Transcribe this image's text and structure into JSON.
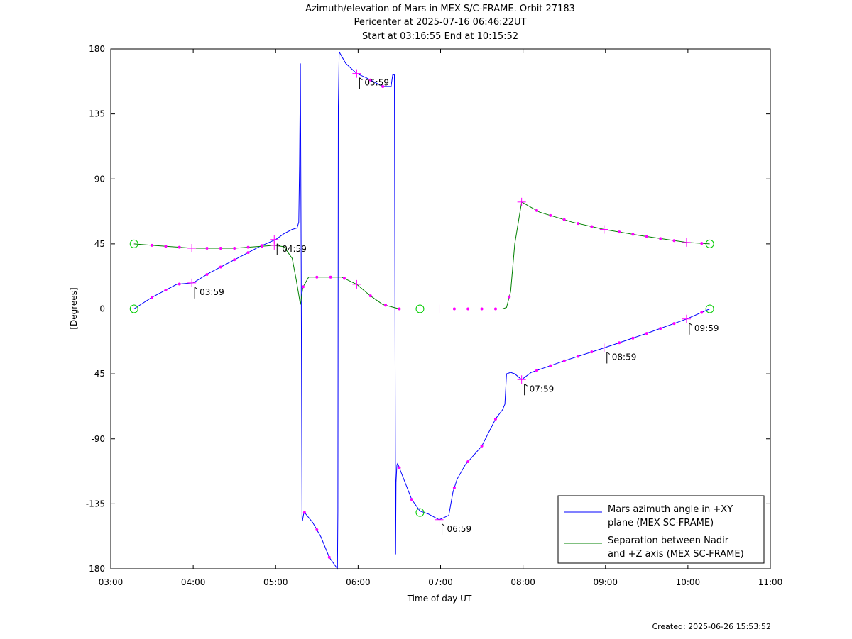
{
  "title": {
    "line1": "Azimuth/elevation of Mars in MEX S/C-FRAME.  Orbit 27183",
    "line2": "Pericenter at 2025-07-16 06:46:22UT",
    "line3": "Start at 03:16:55 End at 10:15:52"
  },
  "footer": {
    "created": "Created: 2025-06-26 15:53:52"
  },
  "chart_data": {
    "type": "line",
    "xlabel": "Time of day UT",
    "ylabel": "[Degrees]",
    "xlim": [
      3.0,
      11.0
    ],
    "ylim": [
      -180,
      180
    ],
    "xticks": [
      3,
      4,
      5,
      6,
      7,
      8,
      9,
      10,
      11
    ],
    "xtick_labels": [
      "03:00",
      "04:00",
      "05:00",
      "06:00",
      "07:00",
      "08:00",
      "09:00",
      "10:00",
      "11:00"
    ],
    "yticks": [
      180,
      135,
      90,
      45,
      0,
      -45,
      -90,
      -135,
      -180
    ],
    "ytick_labels": [
      "180",
      "135",
      "90",
      "45",
      "0",
      "-45",
      "-90",
      "-135",
      "-180"
    ],
    "grid": false,
    "legend_position": "bottom-right",
    "colors": {
      "azimuth": "#0000ff",
      "separation": "#008000",
      "markers": "#ff00ff",
      "endpoints": "#00cc00"
    },
    "series": [
      {
        "name": "Mars azimuth angle in +XY plane (MEX SC-FRAME)",
        "legend_lines": [
          "Mars azimuth angle in +XY",
          "plane (MEX SC-FRAME)"
        ],
        "color": "#0000ff",
        "x": [
          3.282,
          3.5,
          3.8,
          4.0,
          4.2,
          4.5,
          4.8,
          5.0,
          5.1,
          5.2,
          5.26,
          5.28,
          5.29,
          5.3,
          5.305,
          5.31,
          5.315,
          5.32,
          5.325,
          5.33,
          5.34,
          5.35,
          5.45,
          5.55,
          5.65,
          5.75,
          5.755,
          5.76,
          5.77,
          5.85,
          5.983,
          6.1,
          6.2,
          6.3,
          6.4,
          6.42,
          6.44,
          6.45,
          6.455,
          6.46,
          6.47,
          6.48,
          6.5,
          6.65,
          6.75,
          6.85,
          6.983,
          7.1,
          7.15,
          7.2,
          7.3,
          7.5,
          7.67,
          7.75,
          7.78,
          7.8,
          7.85,
          7.9,
          7.983,
          8.1,
          8.5,
          8.983,
          9.5,
          9.983,
          10.265
        ],
        "y": [
          0,
          8,
          17,
          18,
          25,
          34,
          43,
          48,
          52,
          55,
          56,
          60,
          100,
          170,
          95,
          30,
          -60,
          -145,
          -147,
          -145,
          -142,
          -141,
          -148,
          -158,
          -172,
          -180,
          -140,
          140,
          178,
          170,
          163,
          160,
          157,
          154,
          154,
          162,
          162,
          -60,
          -170,
          -120,
          -108,
          -107,
          -110,
          -132,
          -140,
          -142,
          -146,
          -143,
          -127,
          -118,
          -108,
          -95,
          -76,
          -70,
          -66,
          -45,
          -44,
          -45,
          -49,
          -44,
          -36,
          -27,
          -17,
          -7,
          0
        ]
      },
      {
        "name": "Separation between Nadir and +Z axis (MEX SC-FRAME)",
        "legend_lines": [
          "Separation between Nadir",
          "and +Z axis (MEX SC-FRAME)"
        ],
        "color": "#008000",
        "x": [
          3.282,
          3.5,
          4.0,
          4.5,
          4.983,
          5.1,
          5.2,
          5.25,
          5.3,
          5.33,
          5.4,
          5.5,
          5.6,
          5.7,
          5.8,
          5.983,
          6.15,
          6.3,
          6.5,
          6.75,
          7.0,
          7.75,
          7.8,
          7.85,
          7.9,
          7.983,
          8.2,
          8.6,
          8.983,
          9.4,
          9.983,
          10.265
        ],
        "y": [
          45,
          44,
          42,
          42,
          44,
          43,
          35,
          20,
          3,
          15,
          22,
          22,
          22,
          22,
          22,
          17,
          9,
          3,
          0,
          0,
          0,
          0,
          1,
          12,
          45,
          74,
          67,
          60,
          55,
          51,
          46,
          45
        ]
      }
    ],
    "markers": {
      "azimuth_dots_x": [
        3.5,
        3.667,
        3.833,
        4.167,
        4.333,
        4.5,
        4.667,
        4.833,
        5.35,
        5.5,
        5.65,
        6.15,
        6.3,
        6.5,
        6.65,
        7.167,
        7.333,
        7.5,
        7.667,
        8.167,
        8.333,
        8.5,
        8.667,
        8.833,
        9.167,
        9.333,
        9.5,
        9.667,
        9.833,
        10.167
      ],
      "separation_dots_x": [
        3.5,
        3.667,
        3.833,
        4.167,
        4.333,
        4.5,
        4.667,
        4.833,
        5.333,
        5.5,
        5.667,
        5.833,
        6.15,
        6.333,
        6.5,
        7.167,
        7.333,
        7.5,
        7.667,
        7.833,
        8.167,
        8.333,
        8.5,
        8.667,
        8.833,
        9.167,
        9.333,
        9.5,
        9.667,
        9.833,
        10.167
      ],
      "hour_crosses": [
        {
          "x": 3.983,
          "y": 18,
          "label": "03:59"
        },
        {
          "x": 4.983,
          "y": 48,
          "label": "04:59"
        },
        {
          "x": 5.983,
          "y": 163,
          "label": "05:59"
        },
        {
          "x": 6.983,
          "y": -146,
          "label": "06:59"
        },
        {
          "x": 7.983,
          "y": -49,
          "label": "07:59"
        },
        {
          "x": 8.983,
          "y": -27,
          "label": "08:59"
        },
        {
          "x": 9.983,
          "y": -7,
          "label": "09:59"
        }
      ],
      "separation_crosses": [
        {
          "x": 3.983,
          "y": 42
        },
        {
          "x": 4.983,
          "y": 44
        },
        {
          "x": 5.983,
          "y": 17
        },
        {
          "x": 6.983,
          "y": 0
        },
        {
          "x": 7.983,
          "y": 74
        },
        {
          "x": 8.983,
          "y": 55
        },
        {
          "x": 9.983,
          "y": 46
        }
      ],
      "circles": [
        {
          "x": 3.282,
          "y": 0
        },
        {
          "x": 3.282,
          "y": 45
        },
        {
          "x": 6.75,
          "y": 0
        },
        {
          "x": 6.75,
          "y": -141
        },
        {
          "x": 10.265,
          "y": 0
        },
        {
          "x": 10.265,
          "y": 45
        }
      ]
    }
  }
}
